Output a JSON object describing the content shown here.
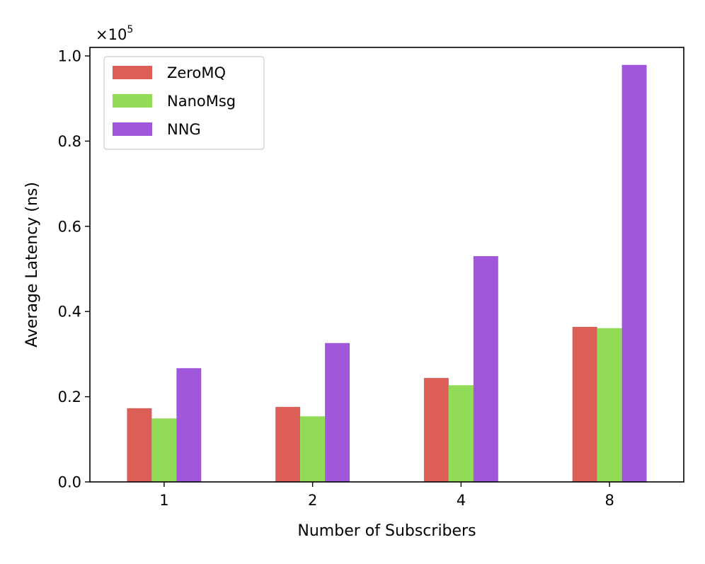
{
  "chart_data": {
    "type": "bar",
    "categories": [
      "1",
      "2",
      "4",
      "8"
    ],
    "series": [
      {
        "name": "ZeroMQ",
        "color": "#db5f57",
        "values": [
          17300,
          17600,
          24400,
          36400
        ]
      },
      {
        "name": "NanoMsg",
        "color": "#91db57",
        "values": [
          14900,
          15400,
          22700,
          36100
        ]
      },
      {
        "name": "NNG",
        "color": "#a157db",
        "values": [
          26700,
          32600,
          53000,
          97900
        ]
      }
    ],
    "xlabel": "Number of Subscribers",
    "ylabel": "Average Latency (ns)",
    "ylim": [
      0,
      102000
    ],
    "yticks": [
      0,
      20000,
      40000,
      60000,
      80000,
      100000
    ],
    "ytick_labels": [
      "0.0",
      "0.2",
      "0.4",
      "0.6",
      "0.8",
      "1.0"
    ],
    "offset_text": {
      "base": "×10",
      "exponent": "5"
    },
    "legend_position": "upper-left",
    "grid": false
  }
}
